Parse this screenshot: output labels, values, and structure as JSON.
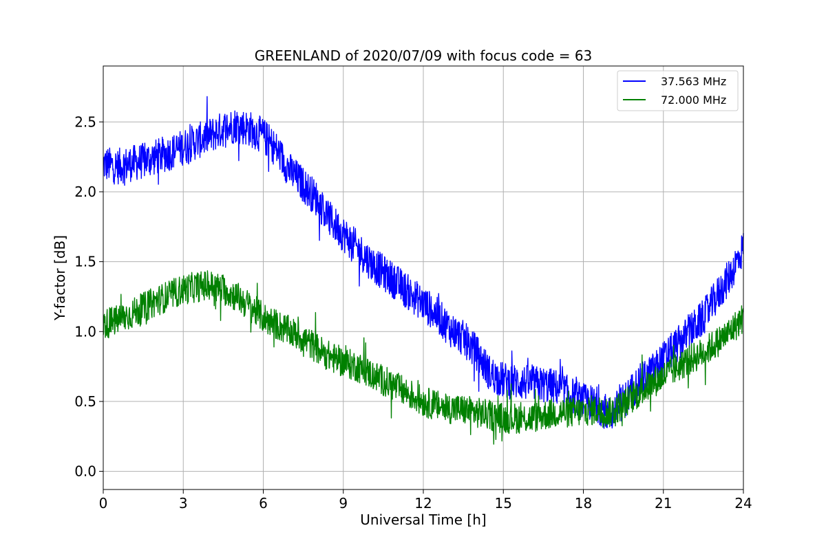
{
  "chart_data": {
    "type": "line",
    "title": "GREENLAND of 2020/07/09 with focus code = 63",
    "xlabel": "Universal Time [h]",
    "ylabel": "Y-factor [dB]",
    "xlim": [
      0,
      24
    ],
    "ylim": [
      -0.13,
      2.9
    ],
    "xticks": [
      0,
      3,
      6,
      9,
      12,
      15,
      18,
      21,
      24
    ],
    "xtick_labels": [
      "0",
      "3",
      "6",
      "9",
      "12",
      "15",
      "18",
      "21",
      "24"
    ],
    "yticks": [
      0.0,
      0.5,
      1.0,
      1.5,
      2.0,
      2.5
    ],
    "ytick_labels": [
      "0.0",
      "0.5",
      "1.0",
      "1.5",
      "2.0",
      "2.5"
    ],
    "grid": true,
    "legend_position": "top-right",
    "x": [
      0,
      0.5,
      1,
      1.5,
      2,
      2.5,
      3,
      3.5,
      4,
      4.5,
      5,
      5.5,
      6,
      6.5,
      7,
      7.5,
      8,
      8.5,
      9,
      9.5,
      10,
      10.5,
      11,
      11.5,
      12,
      12.5,
      13,
      13.5,
      14,
      14.5,
      15,
      15.5,
      16,
      16.5,
      17,
      17.5,
      18,
      18.5,
      19,
      19.5,
      20,
      20.5,
      21,
      21.5,
      22,
      22.5,
      23,
      23.5,
      24
    ],
    "series": [
      {
        "name": "37.563 MHz",
        "color": "#0000ff",
        "values": [
          2.2,
          2.18,
          2.2,
          2.22,
          2.25,
          2.28,
          2.32,
          2.36,
          2.4,
          2.45,
          2.48,
          2.45,
          2.4,
          2.3,
          2.15,
          2.05,
          1.95,
          1.8,
          1.7,
          1.6,
          1.5,
          1.42,
          1.35,
          1.27,
          1.2,
          1.12,
          1.02,
          0.95,
          0.85,
          0.7,
          0.65,
          0.64,
          0.63,
          0.62,
          0.6,
          0.55,
          0.5,
          0.48,
          0.4,
          0.5,
          0.62,
          0.7,
          0.8,
          0.9,
          1.0,
          1.1,
          1.25,
          1.4,
          1.6
        ],
        "noise": 0.13
      },
      {
        "name": "72.000 MHz",
        "color": "#008000",
        "values": [
          1.05,
          1.08,
          1.12,
          1.17,
          1.22,
          1.26,
          1.3,
          1.32,
          1.33,
          1.3,
          1.25,
          1.18,
          1.1,
          1.05,
          1.0,
          0.95,
          0.88,
          0.82,
          0.78,
          0.75,
          0.7,
          0.65,
          0.6,
          0.55,
          0.5,
          0.47,
          0.45,
          0.44,
          0.42,
          0.4,
          0.38,
          0.38,
          0.38,
          0.4,
          0.42,
          0.42,
          0.43,
          0.44,
          0.42,
          0.48,
          0.55,
          0.62,
          0.68,
          0.74,
          0.8,
          0.85,
          0.92,
          1.0,
          1.1
        ],
        "noise": 0.11
      }
    ]
  }
}
